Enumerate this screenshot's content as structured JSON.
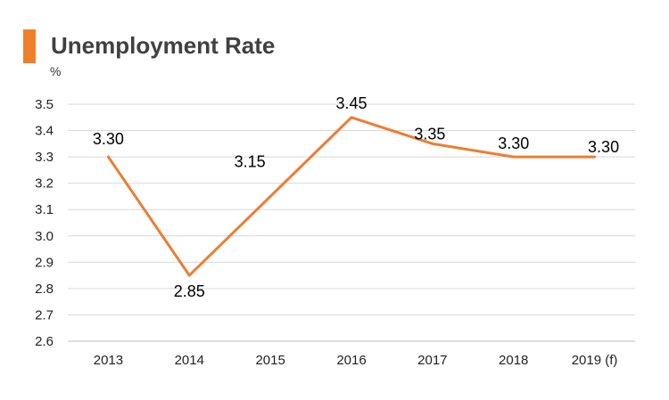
{
  "header": {
    "title": "Unemployment Rate",
    "unit": "%"
  },
  "colors": {
    "accent": "#F07F2A",
    "line": "#ED7D31",
    "grid": "#D9D9D9",
    "axis": "#BFBFBF"
  },
  "chart_data": {
    "type": "line",
    "title": "Unemployment Rate",
    "ylabel": "%",
    "xlabel": "",
    "categories": [
      "2013",
      "2014",
      "2015",
      "2016",
      "2017",
      "2018",
      "2019 (f)"
    ],
    "series": [
      {
        "values": [
          3.3,
          2.85,
          3.15,
          3.45,
          3.35,
          3.3,
          3.3
        ],
        "labels": [
          "3.30",
          "2.85",
          "3.15",
          "3.45",
          "3.35",
          "3.30",
          "3.30"
        ]
      }
    ],
    "ylim": [
      2.6,
      3.5
    ],
    "yticks": [
      "2.6",
      "2.7",
      "2.8",
      "2.9",
      "3.0",
      "3.1",
      "3.2",
      "3.3",
      "3.4",
      "3.5"
    ],
    "grid": true,
    "legend": "none"
  }
}
